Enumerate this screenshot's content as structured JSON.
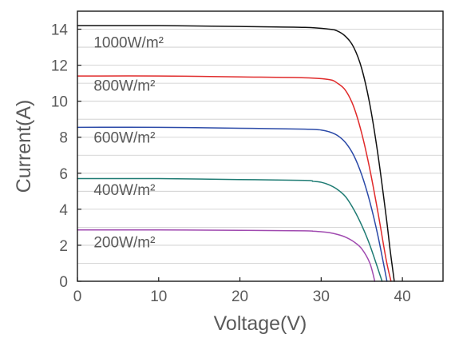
{
  "chart_data": {
    "type": "line",
    "title": "",
    "xlabel": "Voltage(V)",
    "ylabel": "Current(A)",
    "xlim": [
      0,
      45
    ],
    "ylim": [
      0,
      15
    ],
    "xticks": [
      0,
      10,
      20,
      30,
      40
    ],
    "yticks": [
      0,
      2,
      4,
      6,
      8,
      10,
      12,
      14
    ],
    "grid": {
      "x": false,
      "y": true,
      "y_minor_step": 1
    },
    "series": [
      {
        "name": "1000W/m²",
        "color": "#111111",
        "x": [
          0,
          10,
          20,
          28,
          31,
          32,
          33,
          34,
          35,
          36,
          37,
          38,
          38.5,
          39
        ],
        "y": [
          14.2,
          14.2,
          14.15,
          14.1,
          14.0,
          13.9,
          13.6,
          13.0,
          11.8,
          9.8,
          7.0,
          3.6,
          1.7,
          0
        ]
      },
      {
        "name": "800W/m²",
        "color": "#e02a2a",
        "x": [
          0,
          10,
          20,
          28,
          31,
          32,
          33,
          34,
          35,
          36,
          37,
          38,
          38.6
        ],
        "y": [
          11.4,
          11.4,
          11.35,
          11.3,
          11.2,
          11.0,
          10.6,
          9.7,
          8.2,
          6.2,
          3.8,
          1.2,
          0
        ]
      },
      {
        "name": "600W/m²",
        "color": "#2b4aa8",
        "x": [
          0,
          10,
          20,
          28,
          30,
          31,
          32,
          33,
          34,
          35,
          36,
          37,
          38.1
        ],
        "y": [
          8.55,
          8.55,
          8.5,
          8.45,
          8.4,
          8.3,
          8.1,
          7.7,
          7.0,
          5.9,
          4.4,
          2.5,
          0
        ]
      },
      {
        "name": "400W/m²",
        "color": "#1e7b73",
        "x": [
          0,
          10,
          20,
          28,
          29,
          30,
          31,
          32,
          33,
          34,
          35,
          36,
          37.5
        ],
        "y": [
          5.7,
          5.7,
          5.65,
          5.6,
          5.55,
          5.5,
          5.35,
          5.1,
          4.7,
          4.0,
          3.1,
          2.0,
          0
        ]
      },
      {
        "name": "200W/m²",
        "color": "#a04ab0",
        "x": [
          0,
          10,
          20,
          28,
          29,
          30,
          31,
          32,
          33,
          34,
          35,
          36,
          36.6
        ],
        "y": [
          2.85,
          2.85,
          2.83,
          2.8,
          2.78,
          2.75,
          2.7,
          2.6,
          2.45,
          2.2,
          1.8,
          1.0,
          0
        ]
      }
    ],
    "annotations": [
      {
        "text": "1000W/m²",
        "x": 2,
        "y": 13.3
      },
      {
        "text": "800W/m²",
        "x": 2,
        "y": 10.9
      },
      {
        "text": "600W/m²",
        "x": 2,
        "y": 8.0
      },
      {
        "text": "400W/m²",
        "x": 2,
        "y": 5.1
      },
      {
        "text": "200W/m²",
        "x": 2,
        "y": 2.2
      }
    ]
  }
}
